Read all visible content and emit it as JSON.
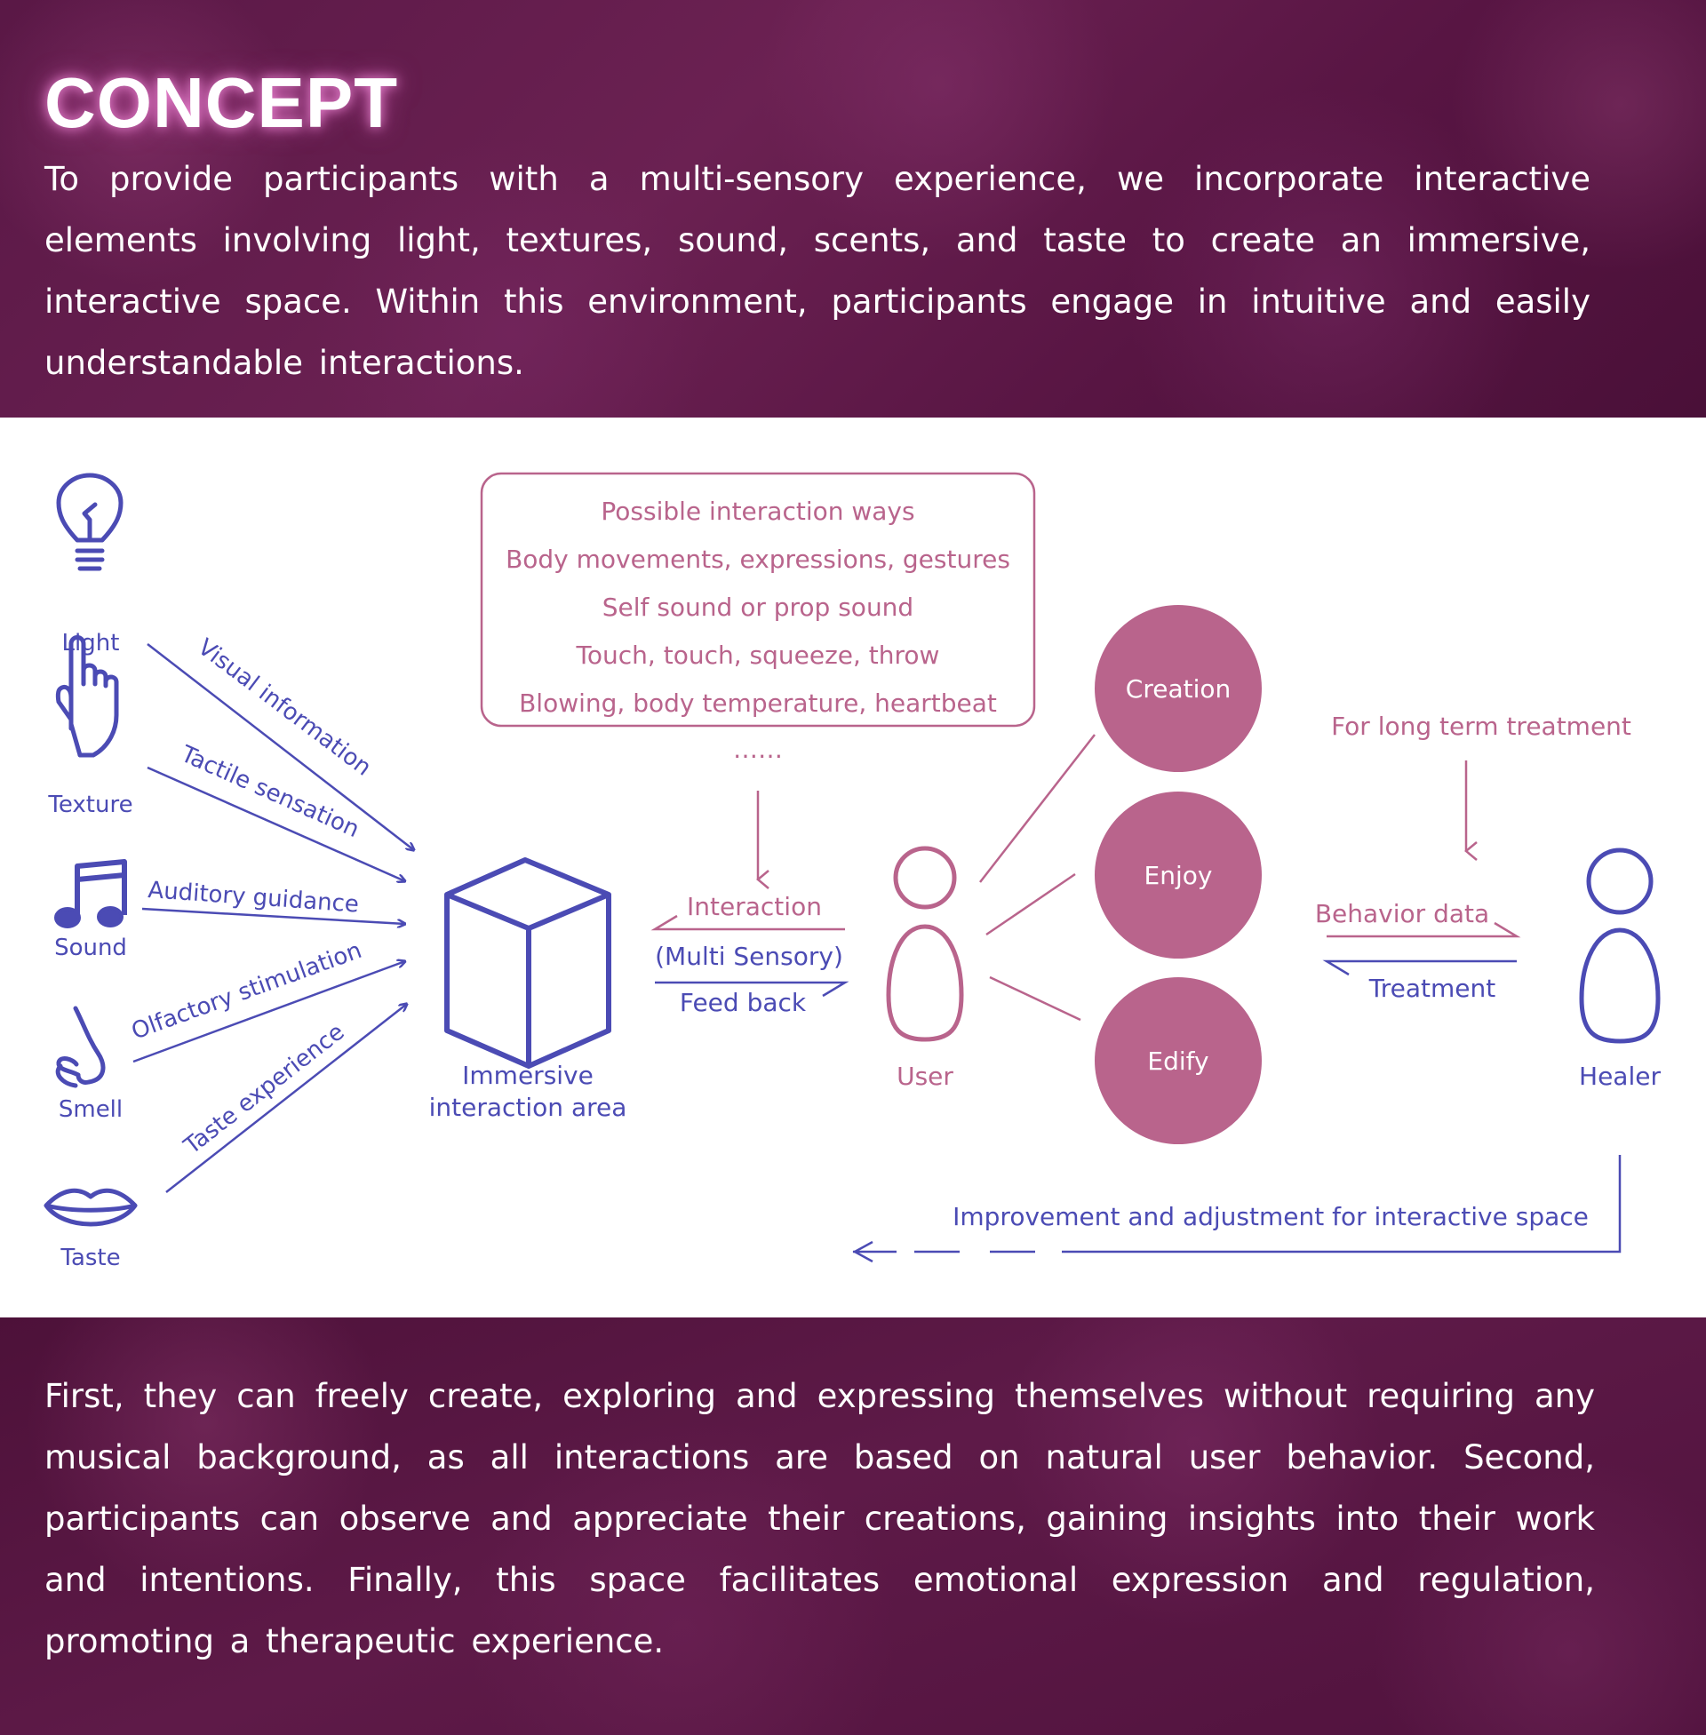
{
  "header": {
    "title": "CONCEPT",
    "intro": "To provide participants with a multi-sensory experience, we incorporate interactive elements involving light, textures, sound, scents, and taste to create an immersive, interactive space. Within this environment, participants engage in intuitive and easily understandable interactions."
  },
  "diagram": {
    "senses": [
      {
        "label": "Light",
        "icon": "lightbulb-icon",
        "channel": "Visual information"
      },
      {
        "label": "Texture",
        "icon": "hand-pointing-icon",
        "channel": "Tactile sensation"
      },
      {
        "label": "Sound",
        "icon": "music-note-icon",
        "channel": "Auditory guidance"
      },
      {
        "label": "Smell",
        "icon": "nose-icon",
        "channel": "Olfactory stimulation"
      },
      {
        "label": "Taste",
        "icon": "lips-icon",
        "channel": "Taste experience"
      }
    ],
    "interaction_box": {
      "title": "Possible interaction ways",
      "lines": [
        "Body movements, expressions, gestures",
        "Self sound or prop sound",
        "Touch, touch, squeeze, throw",
        "Blowing, body temperature, heartbeat"
      ],
      "ellipsis": "……"
    },
    "area": {
      "line1": "Immersive",
      "line2": "interaction area"
    },
    "exchange": {
      "interaction": "Interaction",
      "multi": "(Multi Sensory)",
      "feedback": "Feed back"
    },
    "user": "User",
    "outcomes": [
      "Creation",
      "Enjoy",
      "Edify"
    ],
    "long_term": "For long term treatment",
    "behavior_data": "Behavior data",
    "treatment": "Treatment",
    "healer": "Healer",
    "improvement": "Improvement and adjustment for interactive space",
    "colors": {
      "blue": "#4b4bb4",
      "pink": "#b9648c"
    }
  },
  "footer": {
    "text": "First, they can freely create, exploring and expressing themselves without requiring any musical background, as all interactions are based on natural user behavior. Second, participants can observe and appreciate their creations, gaining insights into their work and intentions. Finally, this space facilitates emotional expression and regulation, promoting a therapeutic experience."
  }
}
